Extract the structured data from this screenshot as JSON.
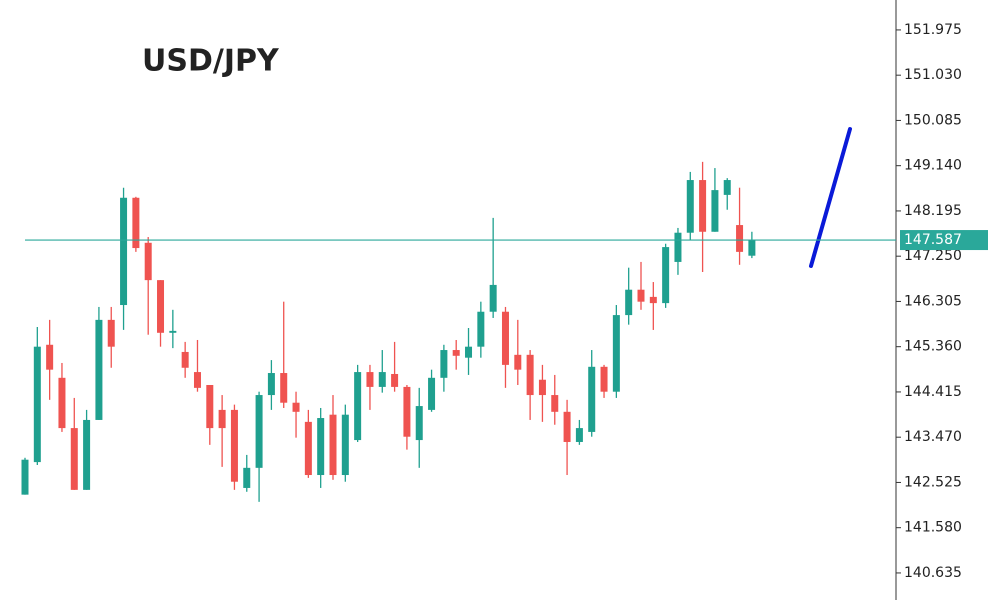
{
  "chart_data": {
    "type": "candlestick",
    "title": "USD/JPY",
    "open": [
      142.27,
      142.95,
      145.4,
      144.71,
      143.66,
      142.37,
      143.83,
      145.92,
      146.23,
      148.47,
      147.53,
      146.75,
      145.65,
      145.25,
      144.83,
      144.56,
      144.04,
      144.04,
      142.41,
      142.83,
      144.35,
      144.81,
      144.19,
      143.79,
      142.68,
      143.94,
      142.68,
      143.41,
      144.83,
      144.52,
      144.79,
      144.52,
      143.41,
      144.04,
      144.71,
      145.29,
      145.13,
      145.36,
      146.09,
      146.09,
      145.19,
      145.19,
      144.67,
      144.35,
      144.0,
      143.37,
      143.58,
      144.94,
      144.42,
      146.02,
      146.55,
      146.4,
      146.27,
      147.13,
      147.74,
      148.84,
      147.76,
      148.53,
      147.9,
      147.26
    ],
    "high": [
      143.04,
      145.77,
      145.92,
      145.02,
      144.29,
      144.04,
      146.19,
      146.19,
      148.68,
      148.49,
      147.65,
      146.75,
      146.13,
      145.46,
      145.5,
      144.56,
      144.35,
      144.15,
      143.1,
      144.42,
      145.08,
      146.3,
      144.42,
      144.04,
      144.08,
      144.35,
      144.15,
      144.98,
      144.98,
      145.29,
      145.46,
      144.56,
      144.5,
      144.88,
      145.4,
      145.5,
      145.75,
      146.3,
      148.05,
      146.19,
      145.92,
      145.29,
      144.98,
      144.77,
      144.25,
      143.83,
      145.29,
      144.98,
      146.23,
      147.01,
      147.13,
      146.71,
      147.51,
      147.84,
      149.01,
      149.22,
      149.09,
      148.88,
      148.68,
      147.76
    ],
    "low": [
      142.27,
      142.89,
      144.25,
      143.58,
      142.37,
      142.37,
      143.83,
      144.92,
      145.71,
      147.34,
      145.61,
      145.36,
      145.33,
      144.71,
      144.42,
      143.31,
      142.85,
      142.37,
      142.33,
      142.12,
      144.04,
      144.08,
      143.46,
      142.62,
      142.41,
      142.58,
      142.54,
      143.37,
      144.04,
      144.4,
      144.42,
      143.21,
      142.83,
      144.0,
      144.42,
      144.88,
      144.77,
      145.13,
      145.96,
      144.5,
      144.56,
      143.83,
      143.79,
      143.73,
      142.68,
      143.31,
      143.48,
      144.29,
      144.29,
      145.82,
      146.13,
      145.71,
      146.17,
      146.86,
      147.59,
      146.92,
      147.76,
      148.22,
      147.07,
      147.21
    ],
    "close": [
      143.0,
      145.36,
      144.88,
      143.66,
      142.37,
      143.83,
      145.92,
      145.36,
      148.47,
      147.42,
      146.75,
      145.65,
      145.69,
      144.92,
      144.5,
      143.66,
      143.66,
      142.54,
      142.83,
      144.35,
      144.81,
      144.19,
      144.0,
      142.68,
      143.87,
      142.68,
      143.94,
      144.83,
      144.52,
      144.83,
      144.52,
      143.48,
      144.12,
      144.71,
      145.29,
      145.17,
      145.36,
      146.09,
      146.65,
      144.98,
      144.88,
      144.35,
      144.35,
      144.0,
      143.37,
      143.66,
      144.94,
      144.42,
      146.02,
      146.55,
      146.3,
      146.27,
      147.44,
      147.74,
      148.84,
      147.76,
      148.63,
      148.84,
      147.34,
      147.59
    ],
    "up_color": "#1fa08f",
    "down_color": "#ef5350",
    "current_price": 147.587,
    "current_price_color": "#2aa89a",
    "ylim": [
      140.07,
      152.6
    ],
    "yticks": [
      151.975,
      {
        "value": 151.03,
        "label": "151.030"
      },
      150.085,
      {
        "value": 149.14,
        "label": "149.140"
      },
      148.195,
      {
        "value": 147.25,
        "label": "147.250"
      },
      146.305,
      {
        "value": 145.36,
        "label": "145.360"
      },
      144.415,
      {
        "value": 143.47,
        "label": "143.470"
      },
      142.525,
      {
        "value": 141.58,
        "label": "141.580"
      },
      140.635
    ]
  }
}
